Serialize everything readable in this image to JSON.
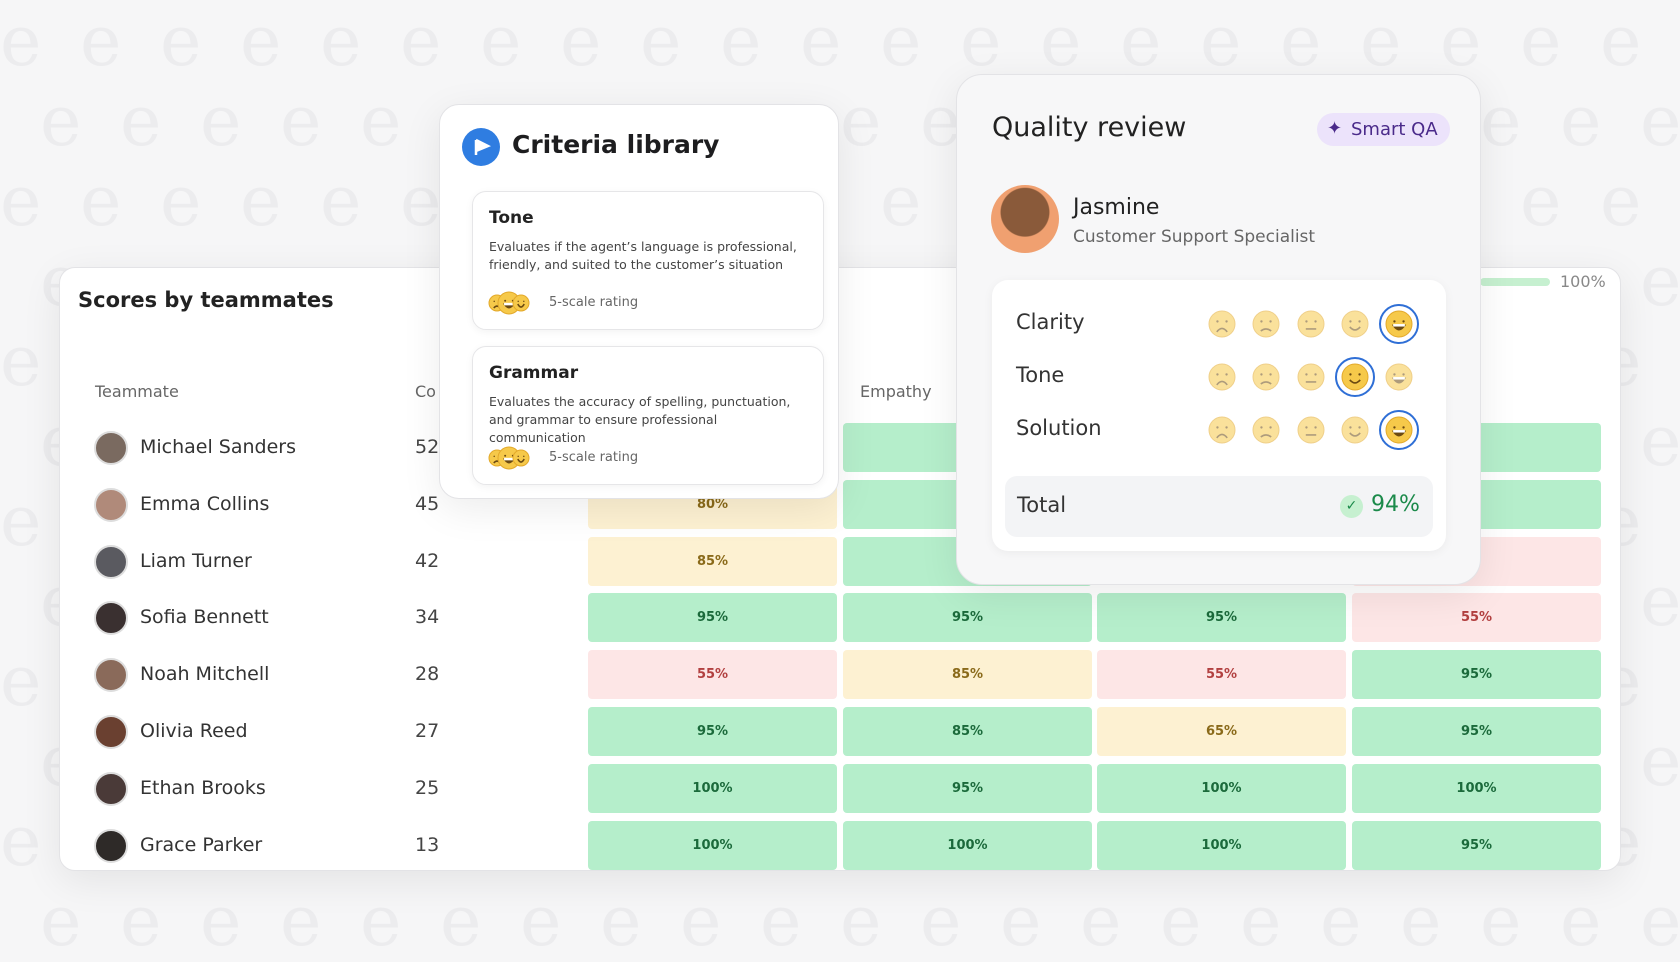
{
  "scores_panel": {
    "title": "Scores by teammates",
    "progress_label": "100%",
    "headers": {
      "teammate": "Teammate",
      "count": "Co",
      "empathy": "Empathy"
    },
    "rows": [
      {
        "name": "Michael Sanders",
        "count": 52,
        "cells": [
          null,
          {
            "label": null,
            "tone": "green"
          },
          null,
          {
            "label": null,
            "tone": "green"
          }
        ]
      },
      {
        "name": "Emma Collins",
        "count": 45,
        "cells": [
          {
            "label": "80%",
            "tone": "yellow"
          },
          {
            "label": null,
            "tone": "green"
          },
          null,
          {
            "label": null,
            "tone": "green"
          }
        ]
      },
      {
        "name": "Liam Turner",
        "count": 42,
        "cells": [
          {
            "label": "85%",
            "tone": "yellow"
          },
          {
            "label": null,
            "tone": "green"
          },
          null,
          {
            "label": null,
            "tone": "red"
          }
        ]
      },
      {
        "name": "Sofia Bennett",
        "count": 34,
        "cells": [
          {
            "label": "95%",
            "tone": "green"
          },
          {
            "label": "95%",
            "tone": "green"
          },
          {
            "label": "95%",
            "tone": "green"
          },
          {
            "label": "55%",
            "tone": "red"
          }
        ]
      },
      {
        "name": "Noah Mitchell",
        "count": 28,
        "cells": [
          {
            "label": "55%",
            "tone": "red"
          },
          {
            "label": "85%",
            "tone": "yellow"
          },
          {
            "label": "55%",
            "tone": "red"
          },
          {
            "label": "95%",
            "tone": "green"
          }
        ]
      },
      {
        "name": "Olivia Reed",
        "count": 27,
        "cells": [
          {
            "label": "95%",
            "tone": "green"
          },
          {
            "label": "85%",
            "tone": "green"
          },
          {
            "label": "65%",
            "tone": "yellow"
          },
          {
            "label": "95%",
            "tone": "green"
          }
        ]
      },
      {
        "name": "Ethan Brooks",
        "count": 25,
        "cells": [
          {
            "label": "100%",
            "tone": "green"
          },
          {
            "label": "95%",
            "tone": "green"
          },
          {
            "label": "100%",
            "tone": "green"
          },
          {
            "label": "100%",
            "tone": "green"
          }
        ]
      },
      {
        "name": "Grace Parker",
        "count": 13,
        "cells": [
          {
            "label": "100%",
            "tone": "green"
          },
          {
            "label": "100%",
            "tone": "green"
          },
          {
            "label": "100%",
            "tone": "green"
          },
          {
            "label": "95%",
            "tone": "green"
          }
        ]
      }
    ]
  },
  "criteria_library": {
    "title": "Criteria library",
    "items": [
      {
        "name": "Tone",
        "description": "Evaluates if the agent’s language is professional, friendly, and suited to the customer’s situation",
        "rating": "5-scale rating"
      },
      {
        "name": "Grammar",
        "description": "Evaluates the accuracy of spelling, punctuation, and grammar to ensure professional communication",
        "rating": "5-scale rating"
      }
    ]
  },
  "quality_review": {
    "title": "Quality review",
    "badge": "Smart QA",
    "agent": {
      "name": "Jasmine",
      "role": "Customer Support Specialist"
    },
    "criteria": [
      {
        "name": "Clarity",
        "selected": 4
      },
      {
        "name": "Tone",
        "selected": 3
      },
      {
        "name": "Solution",
        "selected": 4
      }
    ],
    "total_label": "Total",
    "total": "94%"
  }
}
